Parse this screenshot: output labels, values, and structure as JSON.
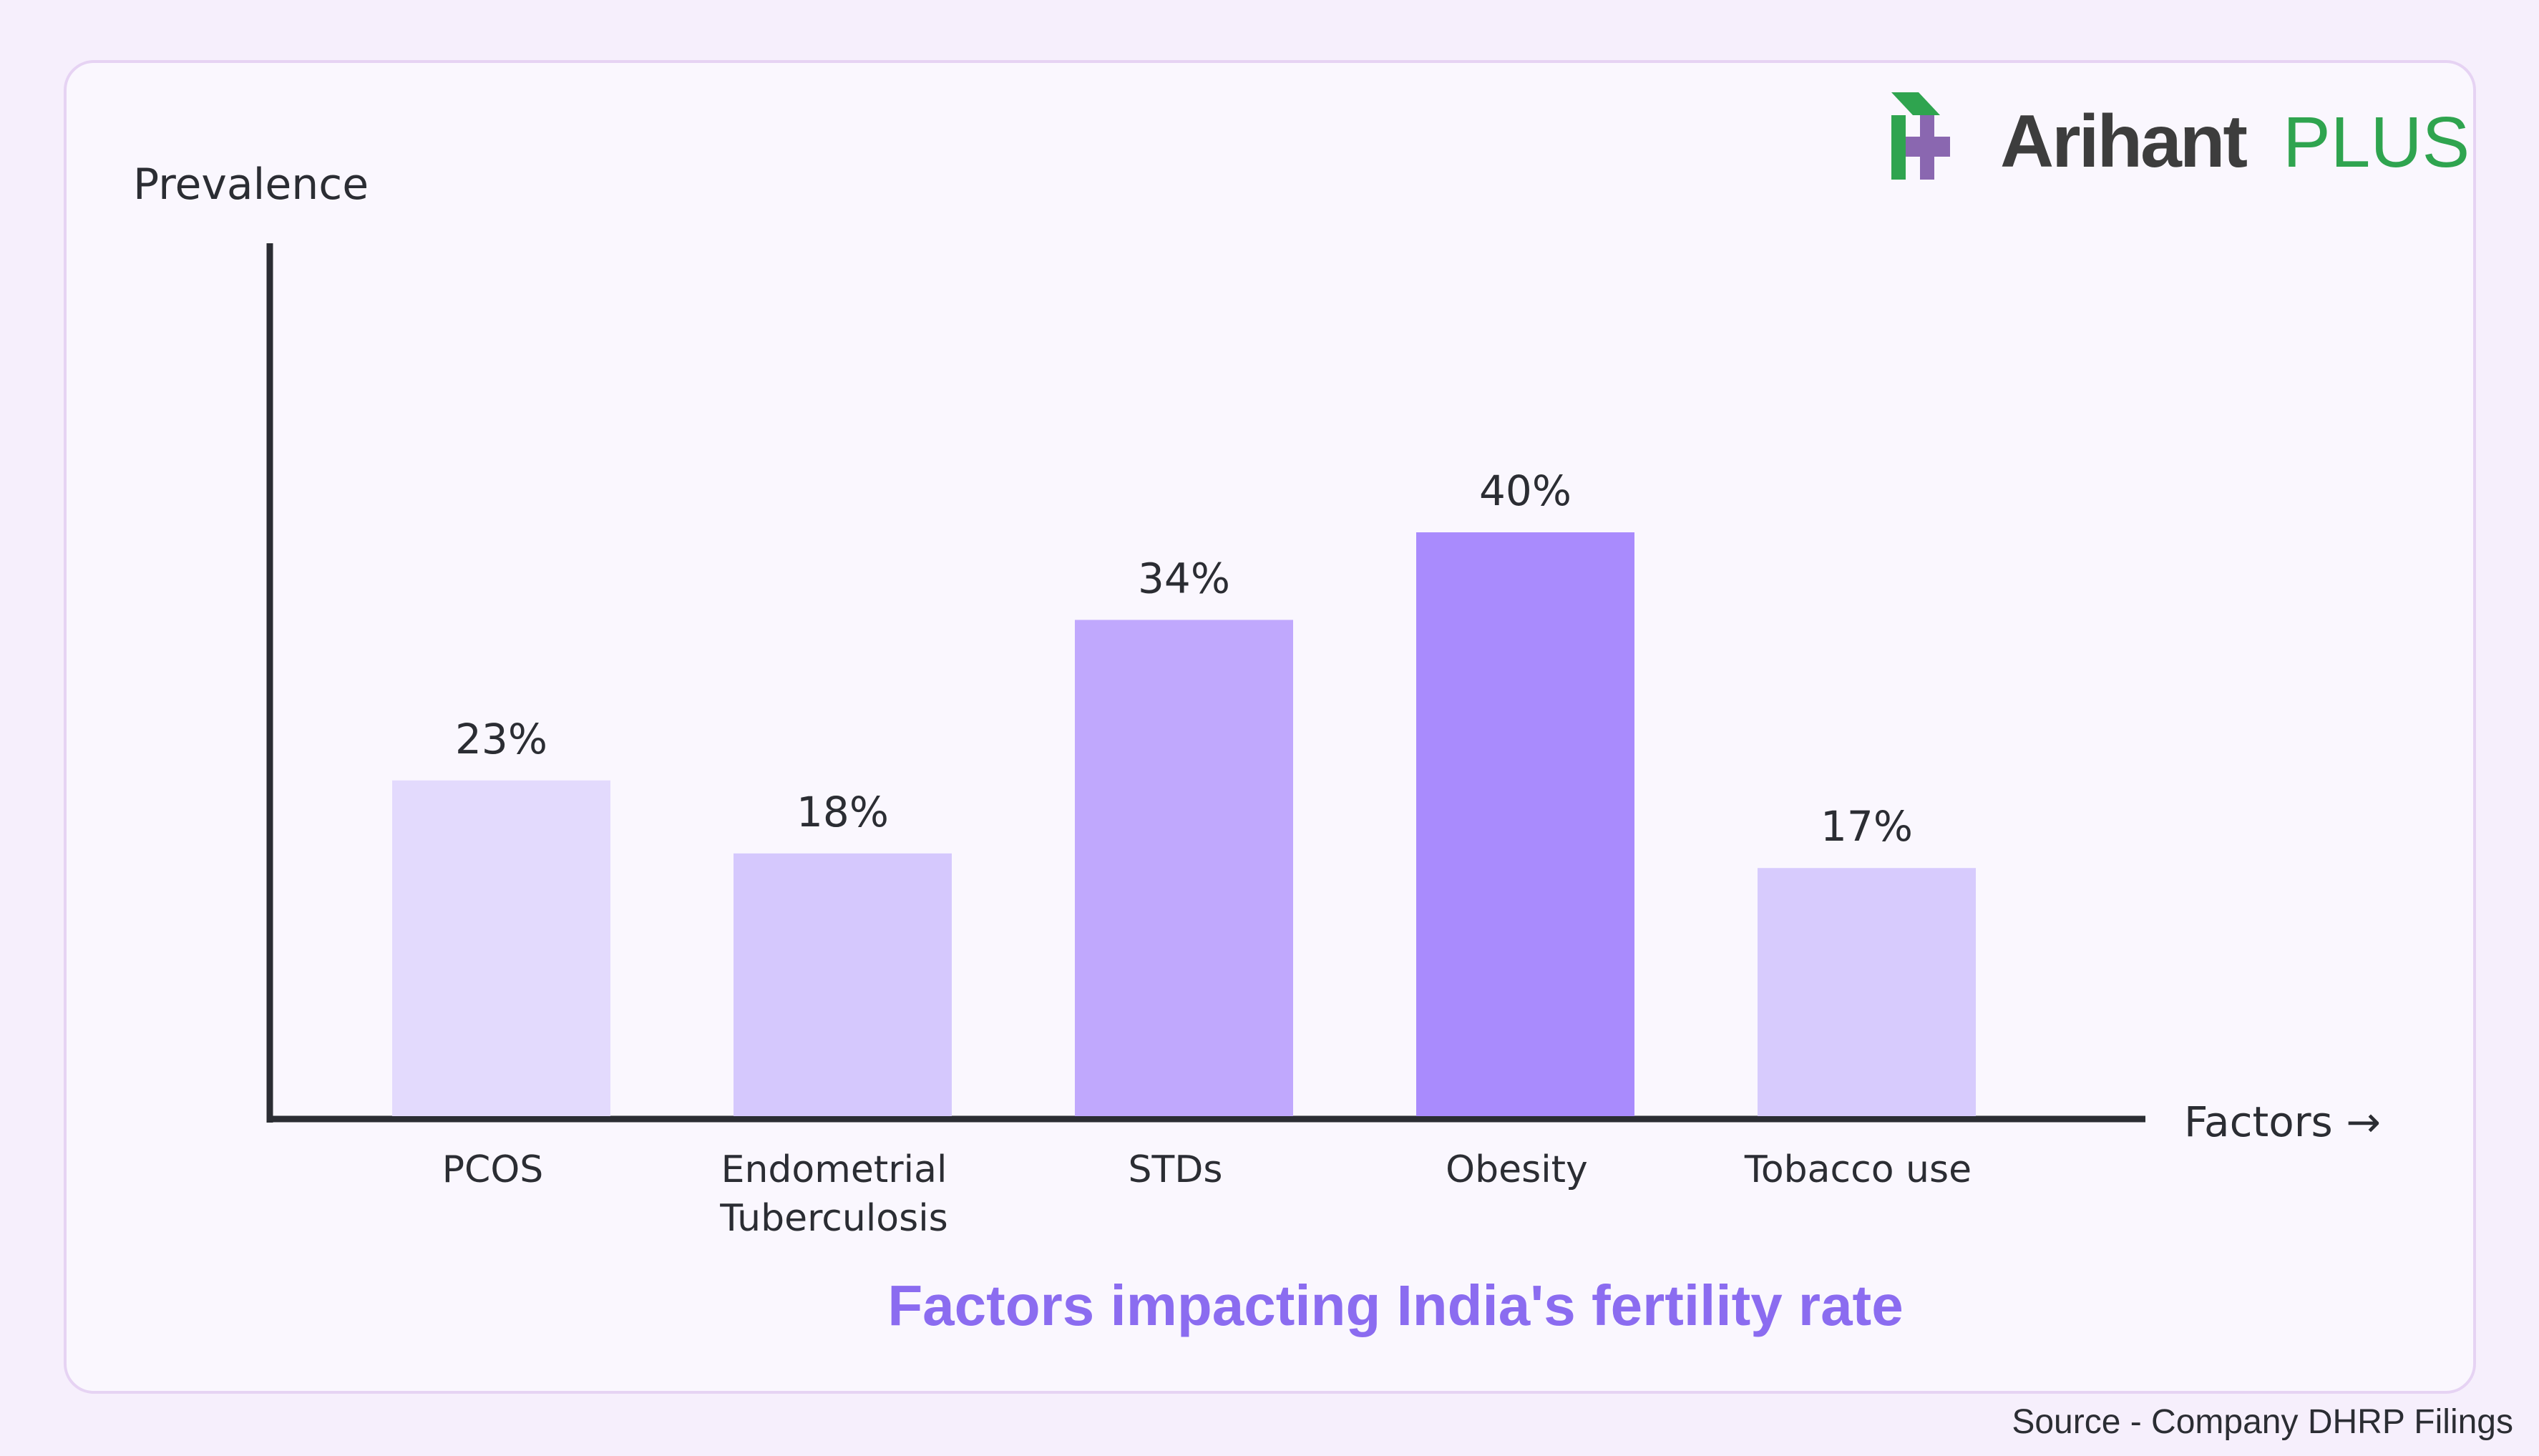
{
  "logo": {
    "text_main": "Arihant",
    "text_accent": "PLUS",
    "colors": {
      "green": "#2fa44f",
      "purple": "#8a67b0",
      "dark": "#3d3d3d"
    }
  },
  "source": "Source - Company DHRP Filings",
  "chart_data": {
    "type": "bar",
    "title": "Factors impacting India's fertility rate",
    "xlabel": "Factors →",
    "ylabel": "Prevalence",
    "categories": [
      [
        "PCOS"
      ],
      [
        "Endometrial",
        "Tuberculosis"
      ],
      [
        "STDs"
      ],
      [
        "Obesity"
      ],
      [
        "Tobacco use"
      ]
    ],
    "values": [
      23,
      18,
      34,
      40,
      17
    ],
    "data_labels": [
      "23%",
      "18%",
      "34%",
      "40%",
      "17%"
    ],
    "unit": "%",
    "bar_colors": [
      "#e3dafd",
      "#d5c8fd",
      "#c0a8fd",
      "#a98bfd",
      "#d7cbfd"
    ],
    "title_color": "#8b6cf0",
    "grid": false,
    "legend": "none"
  }
}
